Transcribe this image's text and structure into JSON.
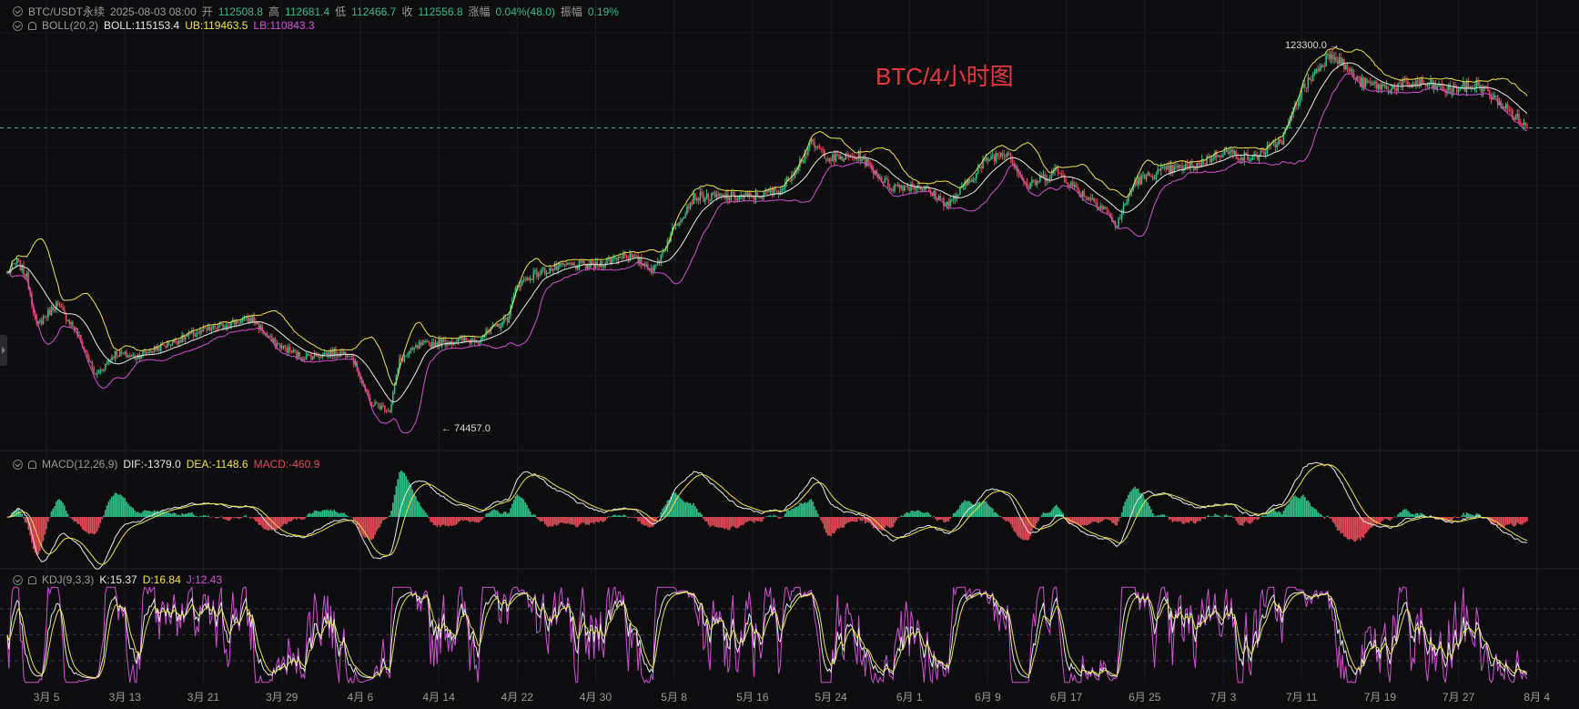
{
  "header": {
    "symbol": "BTC/USDT永续",
    "datetime": "2025-08-03 08:00",
    "open_label": "开",
    "open_value": "112508.8",
    "high_label": "高",
    "high_value": "112681.4",
    "low_label": "低",
    "low_value": "112466.7",
    "close_label": "收",
    "close_value": "112556.8",
    "change_label": "涨幅",
    "change_value": "0.04%(48.0)",
    "amplitude_label": "振幅",
    "amplitude_value": "0.19%"
  },
  "boll": {
    "name": "BOLL(20,2)",
    "boll": "BOLL:115153.4",
    "ub": "UB:119463.5",
    "lb": "LB:110843.3"
  },
  "macd": {
    "name": "MACD(12,26,9)",
    "dif": "DIF:-1379.0",
    "dea": "DEA:-1148.6",
    "macd": "MACD:-460.9"
  },
  "kdj": {
    "name": "KDJ(9,3,3)",
    "k": "K:15.37",
    "d": "D:16.84",
    "j": "J:12.43"
  },
  "chart_title": "BTC/4小时图",
  "annotations": {
    "high": "123300.0 →",
    "low": "← 74457.0"
  },
  "colors": {
    "up": "#2ebd85",
    "down": "#e04b57",
    "mid": "#e8e8e8",
    "upper": "#f0e14a",
    "lower": "#d24fd6",
    "background": "#0d0d0f"
  },
  "chart_data": [
    {
      "type": "candlestick",
      "title": "BTC/4小时图",
      "x_tick_labels": [
        "3月 5",
        "3月 13",
        "3月 21",
        "3月 29",
        "4月 6",
        "4月 14",
        "4月 22",
        "4月 30",
        "5月 8",
        "5月 16",
        "5月 24",
        "6月 1",
        "6月 9",
        "6月 17",
        "6月 25",
        "7月 3",
        "7月 11",
        "7月 19",
        "7月 27",
        "8月 4"
      ],
      "interval": "4h",
      "ylim": [
        72000,
        126000
      ],
      "grid": true,
      "overlay": "BOLL(20,2)",
      "extremes": {
        "high": 123300.0,
        "low": 74457.0
      },
      "last_close": 112556.8,
      "approx_close_path": [
        {
          "x": "3月 1",
          "y": 93500
        },
        {
          "x": "3月 2",
          "y": 95000
        },
        {
          "x": "3月 3",
          "y": 93000
        },
        {
          "x": "3月 4",
          "y": 86500
        },
        {
          "x": "3月 6",
          "y": 89500
        },
        {
          "x": "3月 8",
          "y": 86000
        },
        {
          "x": "3月 10",
          "y": 80000
        },
        {
          "x": "3月 12",
          "y": 83000
        },
        {
          "x": "3月 14",
          "y": 82500
        },
        {
          "x": "3月 17",
          "y": 84000
        },
        {
          "x": "3月 20",
          "y": 85500
        },
        {
          "x": "3月 24",
          "y": 87000
        },
        {
          "x": "3月 26",
          "y": 87500
        },
        {
          "x": "3月 28",
          "y": 84500
        },
        {
          "x": "3月 31",
          "y": 82500
        },
        {
          "x": "4月 3",
          "y": 83000
        },
        {
          "x": "4月 5",
          "y": 83000
        },
        {
          "x": "4月 7",
          "y": 76500
        },
        {
          "x": "4月 9",
          "y": 75500
        },
        {
          "x": "4月 10",
          "y": 82000
        },
        {
          "x": "4月 12",
          "y": 84000
        },
        {
          "x": "4月 15",
          "y": 84500
        },
        {
          "x": "4月 18",
          "y": 84800
        },
        {
          "x": "4月 21",
          "y": 87500
        },
        {
          "x": "4月 22",
          "y": 92000
        },
        {
          "x": "4月 24",
          "y": 93500
        },
        {
          "x": "4月 27",
          "y": 94500
        },
        {
          "x": "4月 30",
          "y": 94500
        },
        {
          "x": "5月 3",
          "y": 96000
        },
        {
          "x": "5月 6",
          "y": 94000
        },
        {
          "x": "5月 8",
          "y": 99500
        },
        {
          "x": "5月 10",
          "y": 103500
        },
        {
          "x": "5月 13",
          "y": 103500
        },
        {
          "x": "5月 16",
          "y": 103500
        },
        {
          "x": "5月 19",
          "y": 104500
        },
        {
          "x": "5月 22",
          "y": 110500
        },
        {
          "x": "5月 24",
          "y": 108500
        },
        {
          "x": "5月 27",
          "y": 108800
        },
        {
          "x": "5月 30",
          "y": 104800
        },
        {
          "x": "6月 2",
          "y": 105000
        },
        {
          "x": "6月 5",
          "y": 102500
        },
        {
          "x": "6月 9",
          "y": 108500
        },
        {
          "x": "6月 11",
          "y": 109500
        },
        {
          "x": "6月 13",
          "y": 104800
        },
        {
          "x": "6月 16",
          "y": 107000
        },
        {
          "x": "6月 18",
          "y": 104500
        },
        {
          "x": "6月 21",
          "y": 102000
        },
        {
          "x": "6月 22",
          "y": 99500
        },
        {
          "x": "6月 24",
          "y": 105500
        },
        {
          "x": "6月 27",
          "y": 107000
        },
        {
          "x": "6月 30",
          "y": 107500
        },
        {
          "x": "7月 3",
          "y": 109500
        },
        {
          "x": "7月 6",
          "y": 108500
        },
        {
          "x": "7月 9",
          "y": 111000
        },
        {
          "x": "7月 11",
          "y": 117500
        },
        {
          "x": "7月 14",
          "y": 122500
        },
        {
          "x": "7月 17",
          "y": 118500
        },
        {
          "x": "7月 20",
          "y": 117800
        },
        {
          "x": "7月 23",
          "y": 118500
        },
        {
          "x": "7月 26",
          "y": 117500
        },
        {
          "x": "7月 29",
          "y": 118200
        },
        {
          "x": "8月 1",
          "y": 115000
        },
        {
          "x": "8月 3",
          "y": 112556.8
        }
      ]
    },
    {
      "type": "histogram",
      "title": "MACD(12,26,9)",
      "last": {
        "DIF": -1379.0,
        "DEA": -1148.6,
        "MACD": -460.9
      },
      "series": [
        {
          "name": "DIF",
          "color": "#e8e8e8"
        },
        {
          "name": "DEA",
          "color": "#f0e14a"
        },
        {
          "name": "MACD",
          "color": "#2ebd85/#e04b57"
        }
      ]
    },
    {
      "type": "line",
      "title": "KDJ(9,3,3)",
      "last": {
        "K": 15.37,
        "D": 16.84,
        "J": 12.43
      },
      "ylim": [
        0,
        100
      ],
      "reference_lines": [
        20,
        50,
        80
      ],
      "series": [
        {
          "name": "K",
          "color": "#e8e8e8"
        },
        {
          "name": "D",
          "color": "#f0e14a"
        },
        {
          "name": "J",
          "color": "#d24fd6"
        }
      ]
    }
  ]
}
